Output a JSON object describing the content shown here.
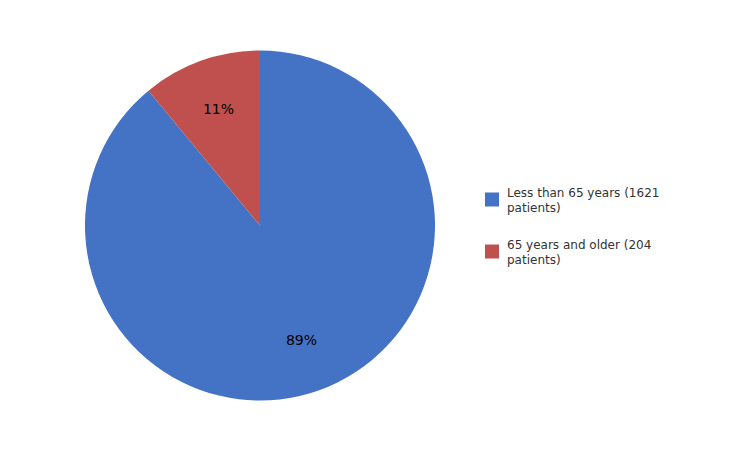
{
  "chart_data": {
    "type": "pie",
    "categories": [
      "Less than 65 years (1621\npatients)",
      "65 years and older (204\npatients)"
    ],
    "values": [
      89,
      11
    ],
    "value_labels": [
      "89%",
      "11%"
    ],
    "colors": [
      "#4472C4",
      "#C0504D"
    ],
    "data_labels": true,
    "legend": "right"
  }
}
